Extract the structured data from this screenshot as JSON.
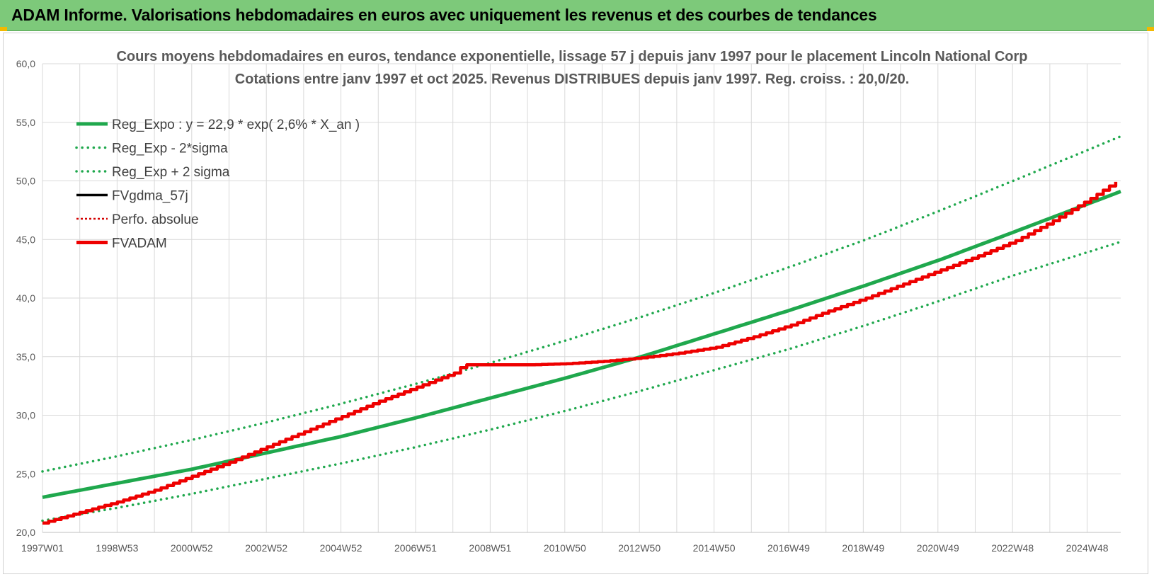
{
  "banner": {
    "title": "ADAM Informe. Valorisations hebdomadaires en euros avec uniquement les revenus et des courbes de tendances"
  },
  "colors": {
    "banner_bg": "#7dc97a",
    "reg_expo": "#1fa84d",
    "band": "#1fa84d",
    "fvgdma": "#000000",
    "perfo": "#d40000",
    "fvadam": "#ee0000",
    "grid": "#d9d9d9"
  },
  "chart_data": {
    "type": "line",
    "title_line1": "Cours moyens hebdomadaires en euros, tendance exponentielle, lissage 57 j depuis janv 1997 pour le placement Lincoln National Corp",
    "title_line2": "Cotations entre janv 1997 et oct 2025. Revenus DISTRIBUES depuis janv 1997.  Reg. croiss. : 20,0/20.",
    "xlabel": "",
    "ylabel": "",
    "x_range_years": [
      1997.0,
      2025.8
    ],
    "ylim": [
      20,
      60
    ],
    "y_ticks": [
      "20,0",
      "25,0",
      "30,0",
      "35,0",
      "40,0",
      "45,0",
      "50,0",
      "55,0",
      "60,0"
    ],
    "x_tick_labels": [
      "1997W01",
      "1998W53",
      "2000W52",
      "2002W52",
      "2004W52",
      "2006W51",
      "2008W51",
      "2010W50",
      "2012W50",
      "2014W50",
      "2016W49",
      "2018W49",
      "2020W49",
      "2022W48",
      "2024W48"
    ],
    "grid": true,
    "legend_position": "top-left",
    "series": [
      {
        "name": "Reg_Expo : y = 22,9 * exp( 2,6% *  X_an )",
        "style": "solid-thick",
        "color": "#1fa84d",
        "x": [
          1997,
          1999,
          2001,
          2003,
          2005,
          2007,
          2009,
          2011,
          2013,
          2015,
          2017,
          2019,
          2021,
          2023,
          2025.8
        ],
        "values": [
          23.0,
          24.2,
          25.4,
          26.8,
          28.2,
          29.8,
          31.5,
          33.2,
          35.0,
          37.0,
          39.0,
          41.1,
          43.3,
          45.7,
          49.1
        ]
      },
      {
        "name": "Reg_Exp - 2*sigma",
        "style": "dotted",
        "color": "#1fa84d",
        "x": [
          1997,
          1999,
          2001,
          2003,
          2005,
          2007,
          2009,
          2011,
          2013,
          2015,
          2017,
          2019,
          2021,
          2023,
          2025.8
        ],
        "values": [
          21.0,
          22.1,
          23.3,
          24.6,
          25.9,
          27.3,
          28.8,
          30.4,
          32.1,
          33.9,
          35.7,
          37.7,
          39.8,
          42.0,
          44.8
        ]
      },
      {
        "name": "Reg_Exp + 2 sigma",
        "style": "dotted",
        "color": "#1fa84d",
        "x": [
          1997,
          1999,
          2001,
          2003,
          2005,
          2007,
          2009,
          2011,
          2013,
          2015,
          2017,
          2019,
          2021,
          2023,
          2025.8
        ],
        "values": [
          25.2,
          26.5,
          27.9,
          29.4,
          31.0,
          32.7,
          34.5,
          36.4,
          38.4,
          40.5,
          42.7,
          45.0,
          47.5,
          50.1,
          53.8
        ]
      },
      {
        "name": "FVgdma_57j",
        "style": "solid",
        "color": "#000000",
        "x": [],
        "values": []
      },
      {
        "name": "Perfo. absolue",
        "style": "dotted-thin",
        "color": "#d40000",
        "x": [],
        "values": []
      },
      {
        "name": "FVADAM",
        "style": "solid-thick-stepped",
        "color": "#ee0000",
        "x": [
          1997,
          1998,
          1999,
          2000,
          2001,
          2002,
          2003,
          2004,
          2005,
          2006,
          2007,
          2008,
          2008.25,
          2009,
          2010,
          2011,
          2012,
          2013,
          2014,
          2015,
          2016,
          2017,
          2018,
          2019,
          2020,
          2021,
          2022,
          2023,
          2024,
          2025,
          2025.8
        ],
        "values": [
          20.8,
          21.7,
          22.6,
          23.6,
          24.8,
          26.0,
          27.3,
          28.6,
          29.9,
          31.2,
          32.4,
          33.6,
          34.3,
          34.3,
          34.3,
          34.4,
          34.6,
          34.9,
          35.3,
          35.8,
          36.7,
          37.7,
          38.9,
          40.0,
          41.2,
          42.4,
          43.6,
          44.9,
          46.6,
          48.5,
          50.2
        ]
      }
    ]
  }
}
